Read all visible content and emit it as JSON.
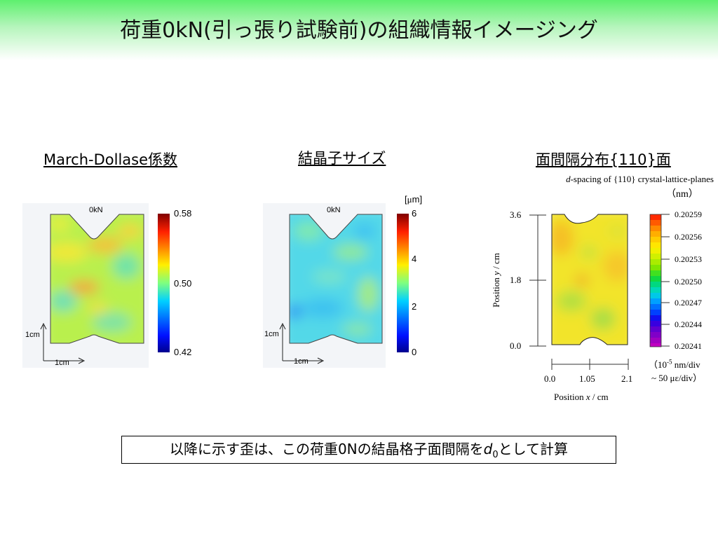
{
  "page": {
    "title": "荷重0kN(引っ張り試験前)の組織情報イメージング",
    "note_before": "以降に示す歪は、この荷重0Nの結晶格子面間隔を",
    "note_d": "d",
    "note_sub": "0",
    "note_after": "として計算"
  },
  "colors": {
    "title_band": "#5ef06e"
  },
  "chart_data": [
    {
      "type": "heatmap",
      "title": "March-Dollase係数",
      "map_label": "0kN",
      "scale_x": "1cm",
      "scale_y": "1cm",
      "colorbar": {
        "ticks": [
          "0.58",
          "0.50",
          "0.42"
        ],
        "range": [
          0.42,
          0.58
        ]
      }
    },
    {
      "type": "heatmap",
      "title": "結晶子サイズ",
      "map_label": "0kN",
      "unit_prefix": "[",
      "unit_mu": "μ",
      "unit_suffix": "m]",
      "scale_x": "1cm",
      "scale_y": "1cm",
      "colorbar": {
        "ticks": [
          "6",
          "4",
          "2",
          "0"
        ],
        "range": [
          0,
          6
        ]
      }
    },
    {
      "type": "heatmap",
      "title": "面間隔分布{110}面",
      "subtitle_d": "d",
      "subtitle_rest": "-spacing of {110} crystal-lattice-planes",
      "subtitle_unit": "（nm）",
      "xlabel_pre": "Position ",
      "xlabel_var": "x",
      "xlabel_post": " / cm",
      "ylabel_pre": "Position ",
      "ylabel_var": "y",
      "ylabel_post": " / cm",
      "x_ticks": [
        "0.0",
        "1.05",
        "2.1"
      ],
      "y_ticks": [
        "3.6",
        "1.8",
        "0.0"
      ],
      "xlim": [
        0.0,
        2.1
      ],
      "ylim": [
        0.0,
        3.6
      ],
      "colorbar": {
        "ticks": [
          "0.20259",
          "0.20256",
          "0.20253",
          "0.20250",
          "0.20247",
          "0.20244",
          "0.20241"
        ],
        "range": [
          0.20241,
          0.20259
        ]
      },
      "unit_note_line1_pre": "（10",
      "unit_note_exp": "-5",
      "unit_note_line1_post": " nm/div",
      "unit_note_line2": "~ 50 με/div）"
    }
  ]
}
